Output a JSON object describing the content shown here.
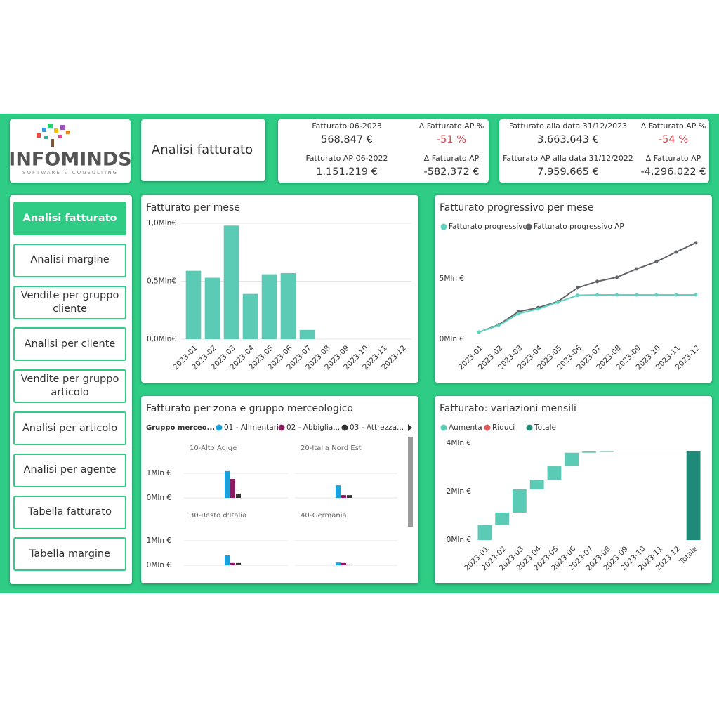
{
  "logo": {
    "name": "INFOMINDS",
    "tagline": "SOFTWARE & CONSULTING"
  },
  "page_title": "Analisi fatturato",
  "kpi_cards": [
    {
      "items": [
        {
          "label": "Fatturato 06-2023",
          "value": "568.847 €"
        },
        {
          "label": "Δ Fatturato AP %",
          "value": "-51 %",
          "color": "#d64550"
        },
        {
          "label": "Fatturato AP 06-2022",
          "value": "1.151.219 €"
        },
        {
          "label": "Δ Fatturato AP",
          "value": "-582.372 €"
        }
      ]
    },
    {
      "items": [
        {
          "label": "Fatturato alla data 31/12/2023",
          "value": "3.663.643 €"
        },
        {
          "label": "Δ Fatturato AP %",
          "value": "-54 %",
          "color": "#d64550"
        },
        {
          "label": "Fatturato AP alla data 31/12/2022",
          "value": "7.959.665 €"
        },
        {
          "label": "Δ Fatturato AP",
          "value": "-4.296.022 €"
        }
      ]
    }
  ],
  "nav": [
    "Analisi fatturato",
    "Analisi margine",
    "Vendite per gruppo cliente",
    "Analisi per cliente",
    "Vendite per gruppo articolo",
    "Analisi per articolo",
    "Analisi per agente",
    "Tabella fatturato",
    "Tabella margine"
  ],
  "nav_active": 0,
  "chart_data": [
    {
      "type": "bar",
      "title": "Fatturato per mese",
      "categories": [
        "2023-01",
        "2023-02",
        "2023-03",
        "2023-04",
        "2023-05",
        "2023-06",
        "2023-07",
        "2023-08",
        "2023-09",
        "2023-10",
        "2023-11",
        "2023-12"
      ],
      "values": [
        0.59,
        0.53,
        0.98,
        0.39,
        0.56,
        0.57,
        0.08,
        null,
        null,
        null,
        null,
        null
      ],
      "color": "#5ccbb6",
      "ylim": [
        0,
        1
      ],
      "yticks": [
        {
          "value": 0,
          "label": "0,0Mln€"
        },
        {
          "value": 0.5,
          "label": "0,5Mln€"
        },
        {
          "value": 1,
          "label": "1,0Mln€"
        }
      ],
      "grid": true
    },
    {
      "type": "line",
      "title": "Fatturato progressivo per mese",
      "categories": [
        "2023-01",
        "2023-02",
        "2023-03",
        "2023-04",
        "2023-05",
        "2023-06",
        "2023-07",
        "2023-08",
        "2023-09",
        "2023-10",
        "2023-11",
        "2023-12"
      ],
      "series": [
        {
          "name": "Fatturato progressivo",
          "color": "#5fd3c1",
          "values": [
            0.59,
            1.12,
            2.1,
            2.49,
            3.05,
            3.62,
            3.66,
            3.66,
            3.66,
            3.66,
            3.66,
            3.66
          ]
        },
        {
          "name": "Fatturato progressivo AP",
          "color": "#606368",
          "values": [
            0.58,
            1.18,
            2.27,
            2.6,
            3.1,
            4.24,
            4.77,
            5.12,
            5.81,
            6.4,
            7.2,
            7.96
          ]
        }
      ],
      "ylim": [
        0,
        9
      ],
      "yticks": [
        {
          "value": 0,
          "label": "0Mln €"
        },
        {
          "value": 5,
          "label": "5Mln €"
        }
      ],
      "grid": false,
      "legend": "top-left"
    },
    {
      "type": "small_multiples",
      "title": "Fatturato per zona e gruppo merceologico",
      "legend_title": "Gruppo merceo...",
      "panels": [
        "10-Alto Adige",
        "20-Italia Nord Est",
        "30-Resto d'Italia",
        "40-Germania"
      ],
      "series": [
        {
          "name": "01 - Alimentari",
          "color": "#1aa1dc",
          "values": [
            1.09,
            0.51,
            0.4,
            0.11
          ]
        },
        {
          "name": "02 - Abbiglia...",
          "color": "#8a1b5e",
          "values": [
            0.77,
            0.11,
            0.09,
            0.09
          ]
        },
        {
          "name": "03 - Attrezza...",
          "color": "#333333",
          "values": [
            0.17,
            0.11,
            0.09,
            0.03
          ]
        }
      ],
      "ylim": [
        0,
        1.5
      ],
      "yticks": [
        {
          "value": 0,
          "label": "0Mln €"
        },
        {
          "value": 1,
          "label": "1Mln €"
        }
      ],
      "grid": true
    },
    {
      "type": "waterfall",
      "title": "Fatturato: variazioni mensili",
      "categories": [
        "2023-01",
        "2023-02",
        "2023-03",
        "2023-04",
        "2023-05",
        "2023-06",
        "2023-07",
        "2023-08",
        "2023-09",
        "2023-10",
        "2023-11",
        "2023-12",
        "Totale"
      ],
      "values": [
        0.61,
        0.52,
        0.96,
        0.4,
        0.55,
        0.56,
        0.05,
        0.01,
        null,
        null,
        null,
        null,
        3.66
      ],
      "legend_items": [
        {
          "name": "Aumenta",
          "color": "#5ccbb6"
        },
        {
          "name": "Riduci",
          "color": "#e05c5c"
        },
        {
          "name": "Totale",
          "color": "#1f8a78"
        }
      ],
      "ylim": [
        0,
        4.2
      ],
      "yticks": [
        {
          "value": 0,
          "label": "0Mln €"
        },
        {
          "value": 2,
          "label": "2Mln €"
        },
        {
          "value": 4,
          "label": "4Mln €"
        }
      ],
      "grid": false
    }
  ]
}
